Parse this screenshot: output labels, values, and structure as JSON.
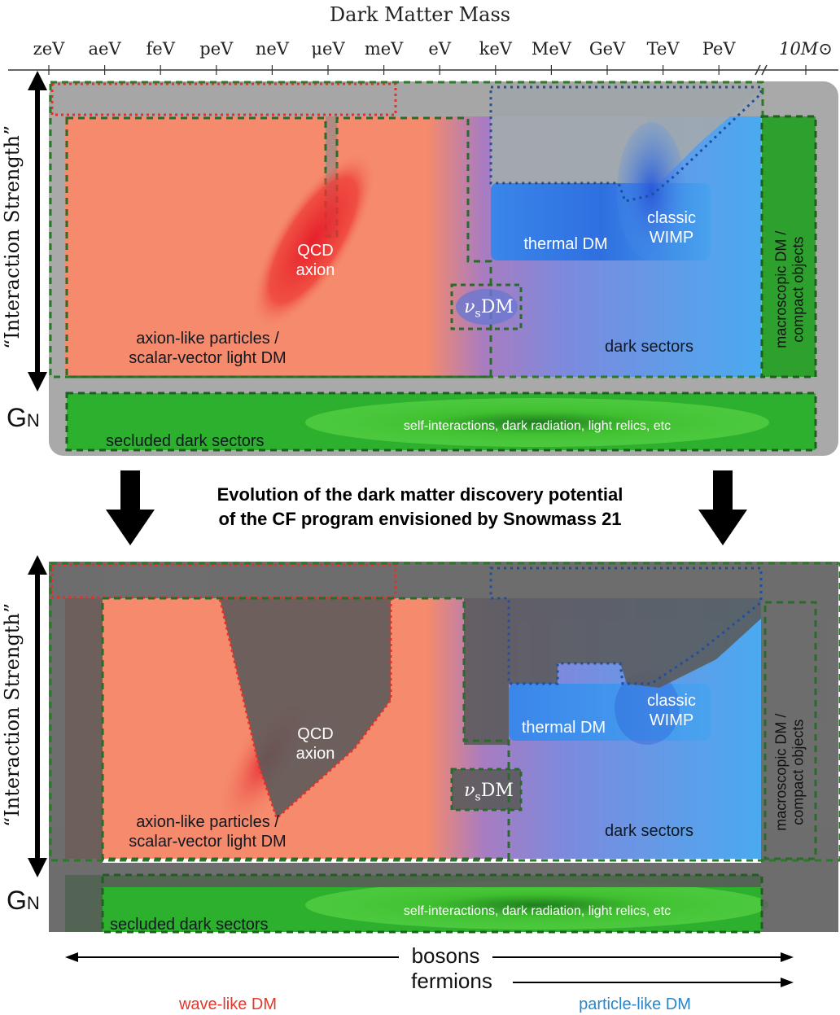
{
  "axis": {
    "title": "Dark Matter Mass",
    "ticks": [
      "zeV",
      "aeV",
      "feV",
      "peV",
      "neV",
      "μeV",
      "meV",
      "eV",
      "keV",
      "MeV",
      "GeV",
      "TeV",
      "PeV"
    ],
    "last_tick": "10M⊙"
  },
  "y_label": "“Interaction Strength”",
  "gn_label": "G",
  "gn_sub": "N",
  "panel": {
    "qcd_axion": "QCD\naxion",
    "alp": "axion-like particles /\nscalar-vector light DM",
    "thermal_dm": "thermal DM",
    "classic_wimp": "classic\nWIMP",
    "nu_s": "ν",
    "nu_s_sub": "s",
    "nu_dm": "DM",
    "dark_sectors": "dark sectors",
    "macroscopic": "macroscopic DM /\ncompact objects",
    "self_interactions": "self-interactions, dark radiation, light relics, etc",
    "secluded": "secluded dark sectors"
  },
  "middle_caption": "Evolution of the dark matter discovery potential\nof the CF program envisioned by Snowmass 21",
  "bottom": {
    "bosons": "bosons",
    "fermions": "fermions",
    "wave_like": "wave-like DM",
    "particle_like": "particle-like DM"
  },
  "colors": {
    "wave": "#f07a5e",
    "particle": "#4aa8ee",
    "green": "#2ea82e",
    "red_label": "#e8362a",
    "blue_label": "#2b86c8"
  }
}
